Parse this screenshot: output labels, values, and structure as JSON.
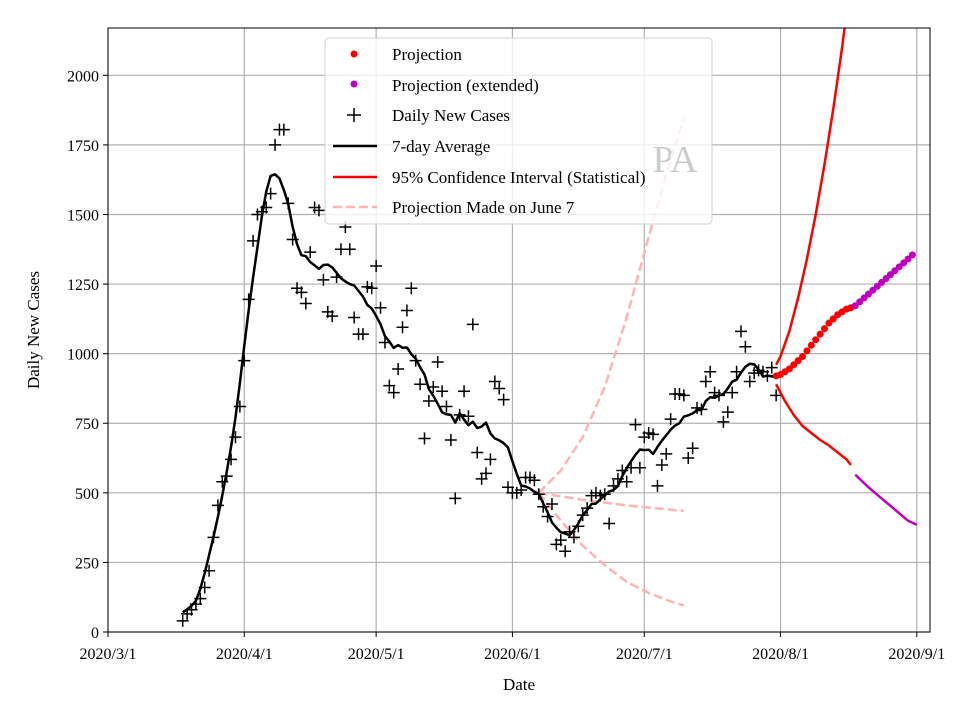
{
  "chart_data": {
    "type": "line",
    "title": "",
    "xlabel": "Date",
    "ylabel": "Daily New Cases",
    "watermark": "PA",
    "xlim": [
      "2020-03-01",
      "2020-09-04"
    ],
    "ylim": [
      0,
      2170
    ],
    "grid": true,
    "legend_position": "top-center",
    "x_ticks": [
      {
        "date": "2020-03-01",
        "label": "2020/3/1"
      },
      {
        "date": "2020-04-01",
        "label": "2020/4/1"
      },
      {
        "date": "2020-05-01",
        "label": "2020/5/1"
      },
      {
        "date": "2020-06-01",
        "label": "2020/6/1"
      },
      {
        "date": "2020-07-01",
        "label": "2020/7/1"
      },
      {
        "date": "2020-08-01",
        "label": "2020/8/1"
      },
      {
        "date": "2020-09-01",
        "label": "2020/9/1"
      }
    ],
    "y_ticks": [
      0,
      250,
      500,
      750,
      1000,
      1250,
      1500,
      1750,
      2000
    ],
    "legend": [
      {
        "key": "projection",
        "label": "Projection"
      },
      {
        "key": "projection_ext",
        "label": "Projection (extended)"
      },
      {
        "key": "daily",
        "label": "Daily New Cases"
      },
      {
        "key": "avg",
        "label": "7-day Average"
      },
      {
        "key": "ci",
        "label": "95% Confidence Interval (Statistical)"
      },
      {
        "key": "june7",
        "label": "Projection Made on June 7"
      }
    ],
    "colors": {
      "daily": "#000000",
      "avg": "#000000",
      "projection": "#ff0000",
      "projection_ext": "#bf00bf",
      "ci": "#ff0000",
      "ci_ext": "#bf00bf",
      "june7": "#ffb3b3",
      "grid": "#b0b0b0",
      "watermark": "#c8c8c8"
    },
    "daily_new_cases": {
      "start": "2020-03-18",
      "values": [
        40,
        65,
        80,
        100,
        120,
        160,
        220,
        340,
        455,
        540,
        560,
        620,
        700,
        810,
        975,
        1195,
        1405,
        1500,
        1510,
        1525,
        1575,
        1750,
        1805,
        1805,
        1540,
        1410,
        1235,
        1220,
        1180,
        1365,
        1525,
        1515,
        1265,
        1150,
        1135,
        1275,
        1375,
        1455,
        1375,
        1130,
        1070,
        1070,
        1240,
        1235,
        1315,
        1165,
        1040,
        885,
        860,
        945,
        1095,
        1155,
        1235,
        975,
        890,
        695,
        830,
        880,
        970,
        865,
        810,
        690,
        480,
        780,
        865,
        775,
        1105,
        645,
        550,
        570,
        620,
        900,
        875,
        835,
        520,
        500,
        500,
        510,
        555,
        555,
        545,
        495,
        450,
        415,
        460,
        315,
        330,
        290,
        360,
        340,
        380,
        420,
        445,
        490,
        500,
        490,
        495,
        390,
        525,
        550,
        580,
        540,
        590,
        745,
        590,
        700,
        715,
        710,
        525,
        600,
        640,
        765,
        855,
        855,
        850,
        625,
        660,
        805,
        800,
        900,
        935,
        860,
        850,
        755,
        790,
        860,
        935,
        1080,
        1025,
        900,
        930,
        940,
        935,
        920,
        950,
        850
      ]
    },
    "seven_day_average": {
      "window": 7,
      "source": "daily_new_cases"
    },
    "projection": {
      "start": "2020-07-31",
      "values": [
        920,
        925,
        935,
        945,
        960,
        975,
        990,
        1010,
        1030,
        1050,
        1070,
        1090,
        1110,
        1125,
        1140,
        1150,
        1160,
        1165
      ]
    },
    "projection_extended": {
      "start": "2020-08-18",
      "values": [
        1172,
        1186,
        1200,
        1214,
        1228,
        1242,
        1256,
        1270,
        1284,
        1298,
        1312,
        1326,
        1340,
        1355
      ]
    },
    "ci_upper": [
      [
        "2020-07-31",
        960
      ],
      [
        "2020-08-01",
        990
      ],
      [
        "2020-08-03",
        1080
      ],
      [
        "2020-08-05",
        1200
      ],
      [
        "2020-08-07",
        1340
      ],
      [
        "2020-08-09",
        1500
      ],
      [
        "2020-08-11",
        1680
      ],
      [
        "2020-08-13",
        1880
      ],
      [
        "2020-08-15",
        2100
      ],
      [
        "2020-08-17",
        2350
      ]
    ],
    "ci_lower": [
      [
        "2020-07-31",
        890
      ],
      [
        "2020-08-02",
        830
      ],
      [
        "2020-08-04",
        780
      ],
      [
        "2020-08-06",
        740
      ],
      [
        "2020-08-08",
        715
      ],
      [
        "2020-08-10",
        690
      ],
      [
        "2020-08-12",
        670
      ],
      [
        "2020-08-14",
        645
      ],
      [
        "2020-08-16",
        620
      ],
      [
        "2020-08-17",
        600
      ]
    ],
    "ci_lower_extended": [
      [
        "2020-08-18",
        565
      ],
      [
        "2020-08-21",
        520
      ],
      [
        "2020-08-24",
        480
      ],
      [
        "2020-08-27",
        440
      ],
      [
        "2020-08-30",
        400
      ],
      [
        "2020-09-01",
        385
      ]
    ],
    "june7_projection": {
      "upper": [
        [
          "2020-06-07",
          500
        ],
        [
          "2020-06-12",
          580
        ],
        [
          "2020-06-17",
          700
        ],
        [
          "2020-06-22",
          880
        ],
        [
          "2020-06-27",
          1130
        ],
        [
          "2020-07-02",
          1420
        ],
        [
          "2020-07-07",
          1700
        ],
        [
          "2020-07-10",
          1845
        ]
      ],
      "middle": [
        [
          "2020-06-07",
          500
        ],
        [
          "2020-06-17",
          475
        ],
        [
          "2020-06-27",
          455
        ],
        [
          "2020-07-10",
          435
        ]
      ],
      "lower": [
        [
          "2020-06-07",
          500
        ],
        [
          "2020-06-12",
          400
        ],
        [
          "2020-06-17",
          310
        ],
        [
          "2020-06-22",
          240
        ],
        [
          "2020-06-27",
          180
        ],
        [
          "2020-07-02",
          140
        ],
        [
          "2020-07-07",
          110
        ],
        [
          "2020-07-10",
          95
        ]
      ]
    }
  }
}
